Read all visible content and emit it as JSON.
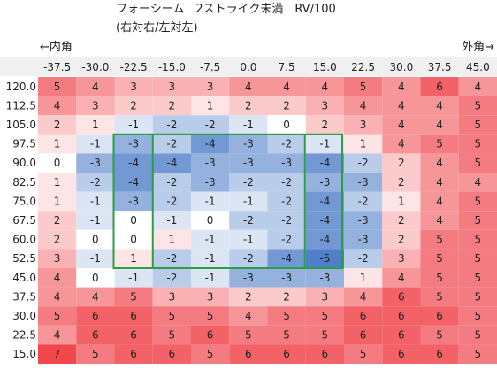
{
  "header": {
    "title": "フォーシーム　2ストライク未満　RV/100",
    "subtitle": "(右対右/左対左)",
    "left_label": "←内角",
    "right_label": "外角→"
  },
  "chart_data": {
    "type": "heatmap",
    "title": "フォーシーム　2ストライク未満　RV/100",
    "subtitle": "(右対右/左対左)",
    "x_categories": [
      "-37.5",
      "-30.0",
      "-22.5",
      "-15.0",
      "-7.5",
      "0.0",
      "7.5",
      "15.0",
      "22.5",
      "30.0",
      "37.5",
      "45.0"
    ],
    "y_categories": [
      "120.0",
      "112.5",
      "105.0",
      "97.5",
      "90.0",
      "82.5",
      "75.0",
      "67.5",
      "60.0",
      "52.5",
      "45.0",
      "37.5",
      "30.0",
      "22.5",
      "15.0"
    ],
    "values": [
      [
        5,
        4,
        3,
        3,
        3,
        4,
        4,
        4,
        5,
        4,
        6,
        4
      ],
      [
        4,
        3,
        2,
        2,
        1,
        2,
        2,
        3,
        4,
        4,
        4,
        5
      ],
      [
        2,
        1,
        -1,
        -2,
        -2,
        -1,
        0,
        2,
        3,
        4,
        4,
        5
      ],
      [
        1,
        -1,
        -3,
        -2,
        -4,
        -3,
        -2,
        -1,
        1,
        4,
        5,
        5
      ],
      [
        0,
        -3,
        -4,
        -4,
        -3,
        -3,
        -3,
        -4,
        -2,
        2,
        4,
        5
      ],
      [
        1,
        -2,
        -4,
        -2,
        -3,
        -2,
        -2,
        -3,
        -3,
        2,
        4,
        4
      ],
      [
        1,
        -1,
        -3,
        -2,
        -1,
        -1,
        -2,
        -4,
        -2,
        1,
        4,
        5
      ],
      [
        2,
        -1,
        0,
        -1,
        0,
        -2,
        -2,
        -4,
        -3,
        2,
        4,
        5
      ],
      [
        2,
        0,
        0,
        1,
        -1,
        -1,
        -2,
        -4,
        -3,
        2,
        5,
        5
      ],
      [
        3,
        -1,
        1,
        -2,
        -1,
        -2,
        -4,
        -5,
        -2,
        3,
        5,
        5
      ],
      [
        4,
        0,
        -1,
        -2,
        -1,
        -3,
        -3,
        -3,
        1,
        4,
        5,
        5
      ],
      [
        4,
        4,
        5,
        3,
        3,
        2,
        2,
        3,
        4,
        6,
        5,
        5
      ],
      [
        5,
        6,
        6,
        5,
        5,
        4,
        5,
        5,
        6,
        6,
        6,
        5
      ],
      [
        4,
        6,
        6,
        5,
        6,
        5,
        5,
        5,
        6,
        6,
        5,
        5
      ],
      [
        7,
        5,
        6,
        6,
        5,
        6,
        6,
        6,
        5,
        6,
        6,
        5
      ]
    ],
    "colors": {
      "negative": "#4f7fc8",
      "neutral": "#ffffff",
      "positive": "#f0484d",
      "zone_border": "#2e9e45",
      "header_bg": "#f0f0f0"
    },
    "strike_zone": {
      "x_range": [
        "-22.5",
        "37.5"
      ],
      "y_range": [
        "97.5",
        "52.5"
      ]
    },
    "zone_dividers_x": [
      "-15.0",
      "15.0"
    ]
  }
}
